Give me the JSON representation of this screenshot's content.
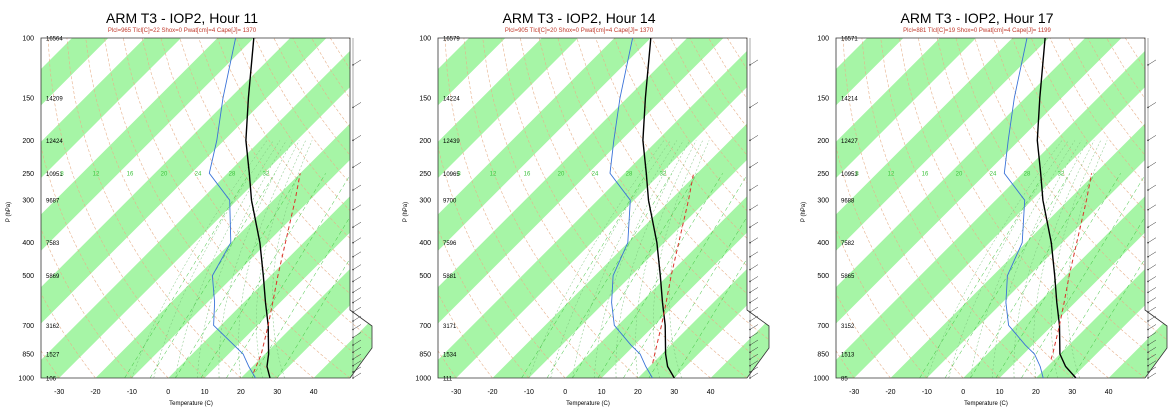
{
  "colors": {
    "isotherm_band": "#a6f5a6",
    "temperature": "#000000",
    "dewpoint": "#3a72d8",
    "parcel": "#d9342b",
    "dry_adiabat": "#e7b08a",
    "moist_adiabat": "#7cc27c",
    "mixing_ratio": "#3cc23c",
    "frame": "#333333"
  },
  "chart_data": [
    {
      "type": "line",
      "title": "ARM T3 - IOP2, Hour 11",
      "subtitle": "Plcl=965 Tlcl[C]=22 Shox=0 Pwat[cm]=4 Cape[J]= 1370",
      "xlabel": "Temperature (C)",
      "ylabel": "P (hPa)",
      "xlim": [
        -35,
        50
      ],
      "ylim": [
        1000,
        100
      ],
      "y_scale": "log",
      "x_ticks": [
        -30,
        -20,
        -10,
        0,
        10,
        20,
        30,
        40
      ],
      "y_ticks": [
        100,
        150,
        200,
        250,
        300,
        400,
        500,
        700,
        850,
        1000
      ],
      "heights": [
        "16564",
        "14209",
        "12424",
        "10951",
        "9687",
        "7583",
        "5869",
        "3162",
        "1527",
        "106"
      ],
      "mixing_ratio_labels": [
        "8",
        "12",
        "16",
        "20",
        "24",
        "28",
        "32"
      ],
      "series": [
        {
          "key": "temperature",
          "pressure": [
            1000,
            925,
            850,
            700,
            600,
            500,
            400,
            300,
            250,
            200,
            150,
            100
          ],
          "temperature": [
            28,
            24,
            21,
            13,
            6,
            -2,
            -12,
            -26,
            -34,
            -44,
            -55,
            -70
          ]
        },
        {
          "key": "dewpoint",
          "pressure": [
            1000,
            925,
            850,
            800,
            700,
            600,
            500,
            400,
            300,
            250,
            200,
            150,
            100
          ],
          "temperature": [
            24,
            19,
            14,
            9,
            -2,
            -8,
            -16,
            -20,
            -32,
            -45,
            -52,
            -62,
            -75
          ]
        },
        {
          "key": "parcel",
          "pressure": [
            965,
            850,
            700,
            600,
            500,
            400,
            300,
            250
          ],
          "temperature": [
            22,
            19,
            13,
            8,
            2,
            -5,
            -14,
            -20
          ]
        }
      ]
    },
    {
      "type": "line",
      "title": "ARM T3 - IOP2, Hour 14",
      "subtitle": "Plcl=905 Tlcl[C]=20 Shox=0 Pwat[cm]=4 Cape[J]= 1370",
      "xlabel": "Temperature (C)",
      "ylabel": "P (hPa)",
      "xlim": [
        -35,
        50
      ],
      "ylim": [
        1000,
        100
      ],
      "y_scale": "log",
      "x_ticks": [
        -30,
        -20,
        -10,
        0,
        10,
        20,
        30,
        40
      ],
      "y_ticks": [
        100,
        150,
        200,
        250,
        300,
        400,
        500,
        700,
        850,
        1000
      ],
      "heights": [
        "16579",
        "14224",
        "12439",
        "10965",
        "9700",
        "7596",
        "5881",
        "3171",
        "1534",
        "111"
      ],
      "mixing_ratio_labels": [
        "8",
        "12",
        "16",
        "20",
        "24",
        "28",
        "32"
      ],
      "series": [
        {
          "key": "temperature",
          "pressure": [
            1000,
            925,
            850,
            700,
            600,
            500,
            400,
            300,
            250,
            200,
            150,
            100
          ],
          "temperature": [
            30,
            25,
            21,
            13,
            6,
            -2,
            -12,
            -26,
            -34,
            -44,
            -55,
            -70
          ]
        },
        {
          "key": "dewpoint",
          "pressure": [
            1000,
            925,
            850,
            800,
            700,
            600,
            500,
            400,
            300,
            250,
            200,
            150,
            100
          ],
          "temperature": [
            24,
            19,
            14,
            9,
            -1,
            -8,
            -15,
            -20,
            -31,
            -44,
            -52,
            -62,
            -75
          ]
        },
        {
          "key": "parcel",
          "pressure": [
            905,
            850,
            700,
            600,
            500,
            400,
            300,
            250
          ],
          "temperature": [
            20,
            18,
            12,
            7,
            1,
            -6,
            -15,
            -21
          ]
        }
      ]
    },
    {
      "type": "line",
      "title": "ARM T3 - IOP2, Hour 17",
      "subtitle": "Plcl=881 Tlcl[C]=19 Shox=0 Pwat[cm]=4 Cape[J]= 1199",
      "xlabel": "Temperature (C)",
      "ylabel": "P (hPa)",
      "xlim": [
        -35,
        50
      ],
      "ylim": [
        1000,
        100
      ],
      "y_scale": "log",
      "x_ticks": [
        -30,
        -20,
        -10,
        0,
        10,
        20,
        30,
        40
      ],
      "y_ticks": [
        100,
        150,
        200,
        250,
        300,
        400,
        500,
        700,
        850,
        1000
      ],
      "heights": [
        "16571",
        "14214",
        "12427",
        "10953",
        "9688",
        "7582",
        "5865",
        "3152",
        "1513",
        "85"
      ],
      "mixing_ratio_labels": [
        "8",
        "12",
        "16",
        "20",
        "24",
        "28",
        "32"
      ],
      "series": [
        {
          "key": "temperature",
          "pressure": [
            1000,
            925,
            850,
            700,
            600,
            500,
            400,
            300,
            250,
            200,
            150,
            100
          ],
          "temperature": [
            31,
            25,
            20,
            12,
            5,
            -3,
            -13,
            -27,
            -35,
            -45,
            -56,
            -71
          ]
        },
        {
          "key": "dewpoint",
          "pressure": [
            1000,
            925,
            850,
            800,
            700,
            600,
            500,
            400,
            300,
            250,
            200,
            150,
            100
          ],
          "temperature": [
            22,
            18,
            13,
            8,
            -2,
            -9,
            -16,
            -21,
            -32,
            -45,
            -53,
            -63,
            -76
          ]
        },
        {
          "key": "parcel",
          "pressure": [
            881,
            850,
            700,
            600,
            500,
            400,
            300,
            250
          ],
          "temperature": [
            19,
            18,
            12,
            7,
            1,
            -6,
            -15,
            -21
          ]
        }
      ]
    }
  ]
}
